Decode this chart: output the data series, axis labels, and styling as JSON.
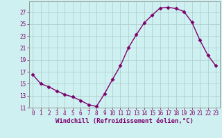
{
  "x": [
    0,
    1,
    2,
    3,
    4,
    5,
    6,
    7,
    8,
    9,
    10,
    11,
    12,
    13,
    14,
    15,
    16,
    17,
    18,
    19,
    20,
    21,
    22,
    23
  ],
  "y": [
    16.5,
    15.0,
    14.5,
    13.8,
    13.2,
    12.8,
    12.2,
    11.5,
    11.2,
    13.3,
    15.7,
    18.0,
    21.0,
    23.2,
    25.2,
    26.5,
    27.7,
    27.8,
    27.6,
    27.1,
    25.3,
    22.3,
    19.8,
    18.0
  ],
  "line_color": "#7B006B",
  "marker": "D",
  "marker_size": 2.5,
  "bg_color": "#cff0f0",
  "grid_color": "#aacccc",
  "xlabel": "Windchill (Refroidissement éolien,°C)",
  "ylim": [
    11,
    28
  ],
  "xlim": [
    -0.5,
    23.5
  ],
  "yticks": [
    11,
    13,
    15,
    17,
    19,
    21,
    23,
    25,
    27
  ],
  "xticks": [
    0,
    1,
    2,
    3,
    4,
    5,
    6,
    7,
    8,
    9,
    10,
    11,
    12,
    13,
    14,
    15,
    16,
    17,
    18,
    19,
    20,
    21,
    22,
    23
  ],
  "tick_label_fontsize": 5.5,
  "xlabel_fontsize": 6.5,
  "linewidth": 1.0
}
